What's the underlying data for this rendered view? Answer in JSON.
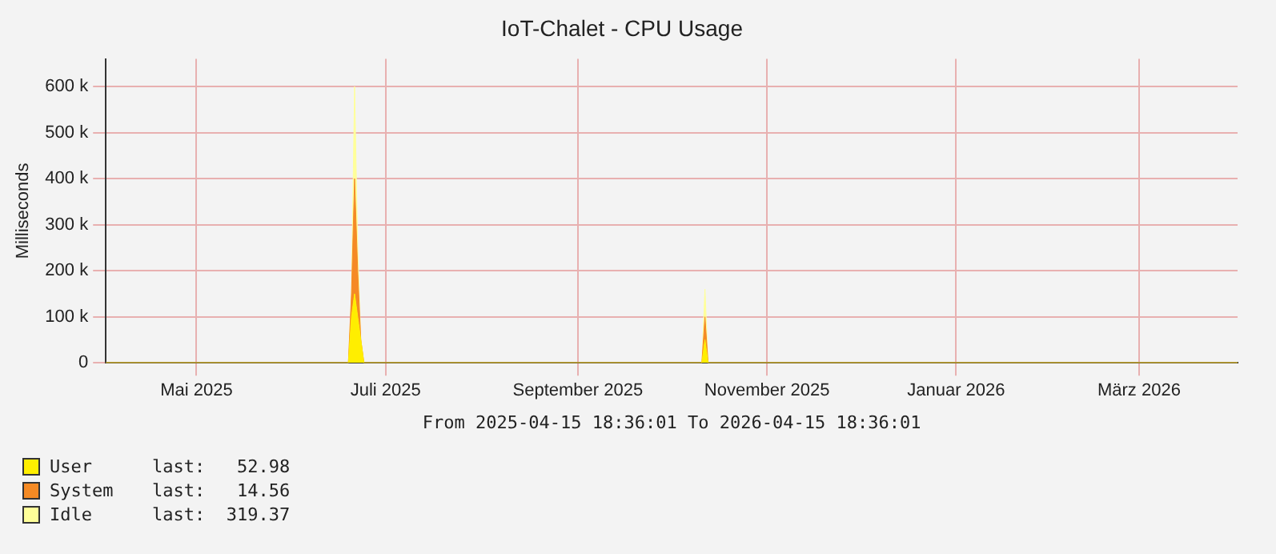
{
  "chart_data": {
    "type": "area",
    "title": "IoT-Chalet - CPU Usage",
    "ylabel": "Milliseconds",
    "xlabel": "From 2025-04-15 18:36:01 To 2026-04-15 18:36:01",
    "stacked": true,
    "grid": true,
    "legend": "bottom left",
    "x": [
      "2025-04-15T18:36",
      "2025-07-03",
      "2025-07-04",
      "2025-07-05",
      "2025-07-06",
      "2025-07-07",
      "2025-07-08",
      "2025-10-25",
      "2025-10-26",
      "2025-10-27",
      "2026-04-15T18:36"
    ],
    "series": [
      {
        "name": "User",
        "color": "#ffee00",
        "values": [
          0,
          0,
          100000,
          150000,
          100000,
          50000,
          0,
          0,
          50000,
          0,
          0
        ]
      },
      {
        "name": "System",
        "color": "#f58a24",
        "values": [
          0,
          0,
          50000,
          250000,
          100000,
          0,
          0,
          0,
          50000,
          0,
          0
        ]
      },
      {
        "name": "Idle",
        "color": "#ffff99",
        "values": [
          0,
          0,
          0,
          200000,
          50000,
          0,
          0,
          0,
          60000,
          0,
          0
        ]
      }
    ],
    "annotations": [
      "last:   52.98",
      "last:   14.56",
      "last:  319.37"
    ],
    "xlim": [
      "2025-04-15T18:36",
      "2026-04-15T18:36"
    ],
    "xticks": [
      {
        "value": "2025-05-15",
        "label": "Mai 2025"
      },
      {
        "value": "2025-07-15",
        "label": "Juli 2025"
      },
      {
        "value": "2025-09-15",
        "label": "September 2025"
      },
      {
        "value": "2025-11-15",
        "label": "November 2025"
      },
      {
        "value": "2026-01-15",
        "label": "Januar 2026"
      },
      {
        "value": "2026-03-15",
        "label": "März 2026"
      }
    ],
    "ylim": [
      0,
      660000
    ],
    "yticks": [
      {
        "value": 0,
        "label": "0"
      },
      {
        "value": 100000,
        "label": "100 k"
      },
      {
        "value": 200000,
        "label": "200 k"
      },
      {
        "value": 300000,
        "label": "300 k"
      },
      {
        "value": 400000,
        "label": "400 k"
      },
      {
        "value": 500000,
        "label": "500 k"
      },
      {
        "value": 600000,
        "label": "600 k"
      }
    ]
  }
}
